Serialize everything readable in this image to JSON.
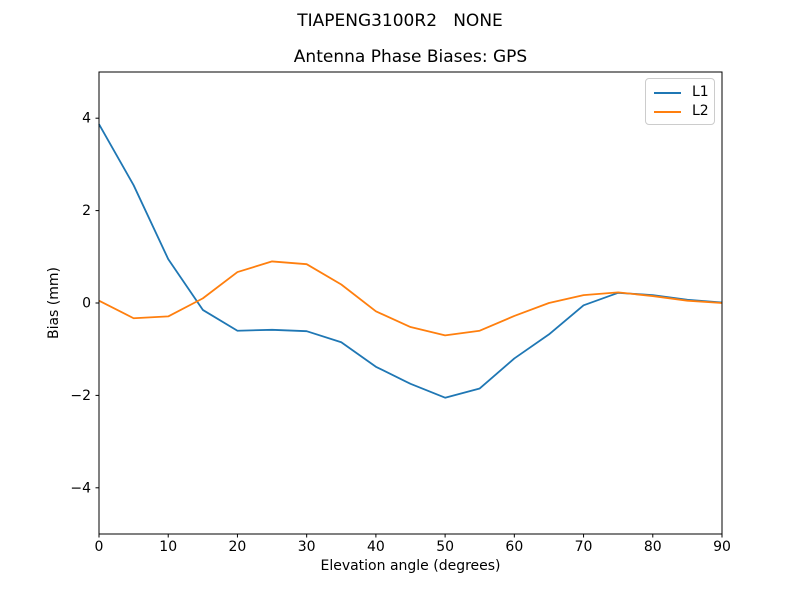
{
  "window": {
    "background": "#ffffff",
    "text_color": "#000000",
    "spine_color": "#000000",
    "legend_border_color": "#cccccc"
  },
  "chart_data": {
    "type": "line",
    "suptitle": "TIAPENG3100R2   NONE",
    "title": "Antenna Phase Biases: GPS",
    "xlabel": "Elevation angle (degrees)",
    "ylabel": "Bias (mm)",
    "xlim": [
      0,
      90
    ],
    "ylim": [
      -5,
      5
    ],
    "xticks": [
      0,
      10,
      20,
      30,
      40,
      50,
      60,
      70,
      80,
      90
    ],
    "yticks": [
      -4,
      -2,
      0,
      2,
      4
    ],
    "grid": false,
    "legend": {
      "position": "upper right",
      "entries": [
        "L1",
        "L2"
      ]
    },
    "x": [
      0,
      5,
      10,
      15,
      20,
      25,
      30,
      35,
      40,
      45,
      50,
      55,
      60,
      65,
      70,
      75,
      80,
      85,
      90
    ],
    "series": [
      {
        "name": "L1",
        "color": "#1f77b4",
        "values": [
          3.87,
          2.55,
          0.95,
          -0.15,
          -0.6,
          -0.58,
          -0.61,
          -0.85,
          -1.38,
          -1.75,
          -2.05,
          -1.85,
          -1.2,
          -0.68,
          -0.05,
          0.22,
          0.17,
          0.07,
          0.01
        ]
      },
      {
        "name": "L2",
        "color": "#ff7f0e",
        "values": [
          0.05,
          -0.33,
          -0.29,
          0.1,
          0.67,
          0.9,
          0.84,
          0.4,
          -0.18,
          -0.52,
          -0.7,
          -0.6,
          -0.28,
          0.0,
          0.17,
          0.23,
          0.15,
          0.05,
          0.0
        ]
      }
    ]
  }
}
